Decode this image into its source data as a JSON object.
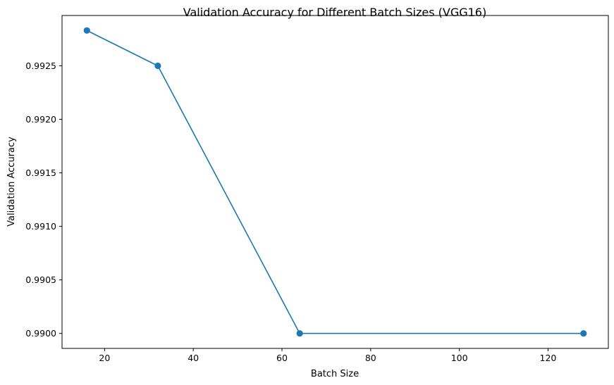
{
  "chart_data": {
    "type": "line",
    "title": "Validation Accuracy for Different Batch Sizes (VGG16)",
    "xlabel": "Batch Size",
    "ylabel": "Validation Accuracy",
    "x": [
      16,
      32,
      64,
      128
    ],
    "series": [
      {
        "values": [
          0.99283,
          0.9925,
          0.99,
          0.99
        ],
        "color": "#1f77b4",
        "marker": "circle"
      }
    ],
    "xlim": [
      10.4,
      133.6
    ],
    "ylim": [
      0.98986,
      0.99297
    ],
    "xticks": [
      20,
      40,
      60,
      80,
      100,
      120
    ],
    "xtick_labels": [
      "20",
      "40",
      "60",
      "80",
      "100",
      "120"
    ],
    "yticks": [
      0.99,
      0.9905,
      0.991,
      0.9915,
      0.992,
      0.9925
    ],
    "ytick_labels": [
      "0.9900",
      "0.9905",
      "0.9910",
      "0.9915",
      "0.9920",
      "0.9925"
    ],
    "grid": false,
    "legend": false
  }
}
